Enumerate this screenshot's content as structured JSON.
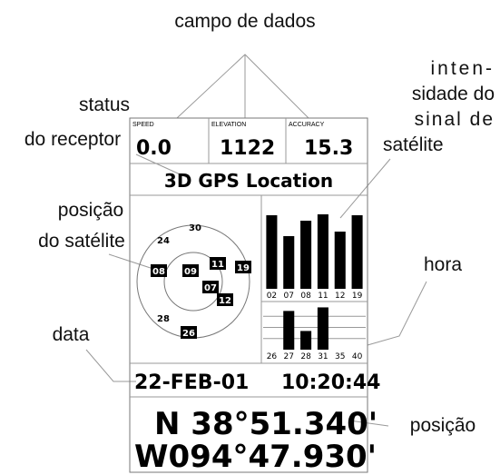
{
  "annotations": {
    "data_fields": "campo de dados",
    "signal_strength": [
      "inten-",
      "sidade do",
      "sinal  de",
      "satélite"
    ],
    "receiver_status": [
      "status",
      "do receptor"
    ],
    "satellite_position": [
      "posição",
      "do satélite"
    ],
    "time": "hora",
    "date": "data",
    "position": "posição"
  },
  "screen": {
    "fields": [
      {
        "label": "SPEED",
        "value": "0.0"
      },
      {
        "label": "ELEVATION",
        "value": "1122"
      },
      {
        "label": "ACCURACY",
        "value": "15.3"
      }
    ],
    "status": "3D GPS Location",
    "sky_satellites": [
      "24",
      "30",
      "08",
      "09",
      "11",
      "19",
      "07",
      "12",
      "28",
      "26"
    ],
    "signal_upper": {
      "satellites": [
        "02",
        "07",
        "08",
        "11",
        "12",
        "19"
      ],
      "strength": [
        81,
        58,
        75,
        82,
        63,
        81
      ]
    },
    "signal_lower": {
      "satellites": [
        "26",
        "27",
        "28",
        "31",
        "35",
        "40"
      ],
      "strength": [
        0,
        87,
        42,
        95,
        0,
        0
      ]
    },
    "date": "22-FEB-01",
    "time": "10:20:44",
    "latitude": "N  38°51.340'",
    "longitude": "W094°47.930'"
  }
}
